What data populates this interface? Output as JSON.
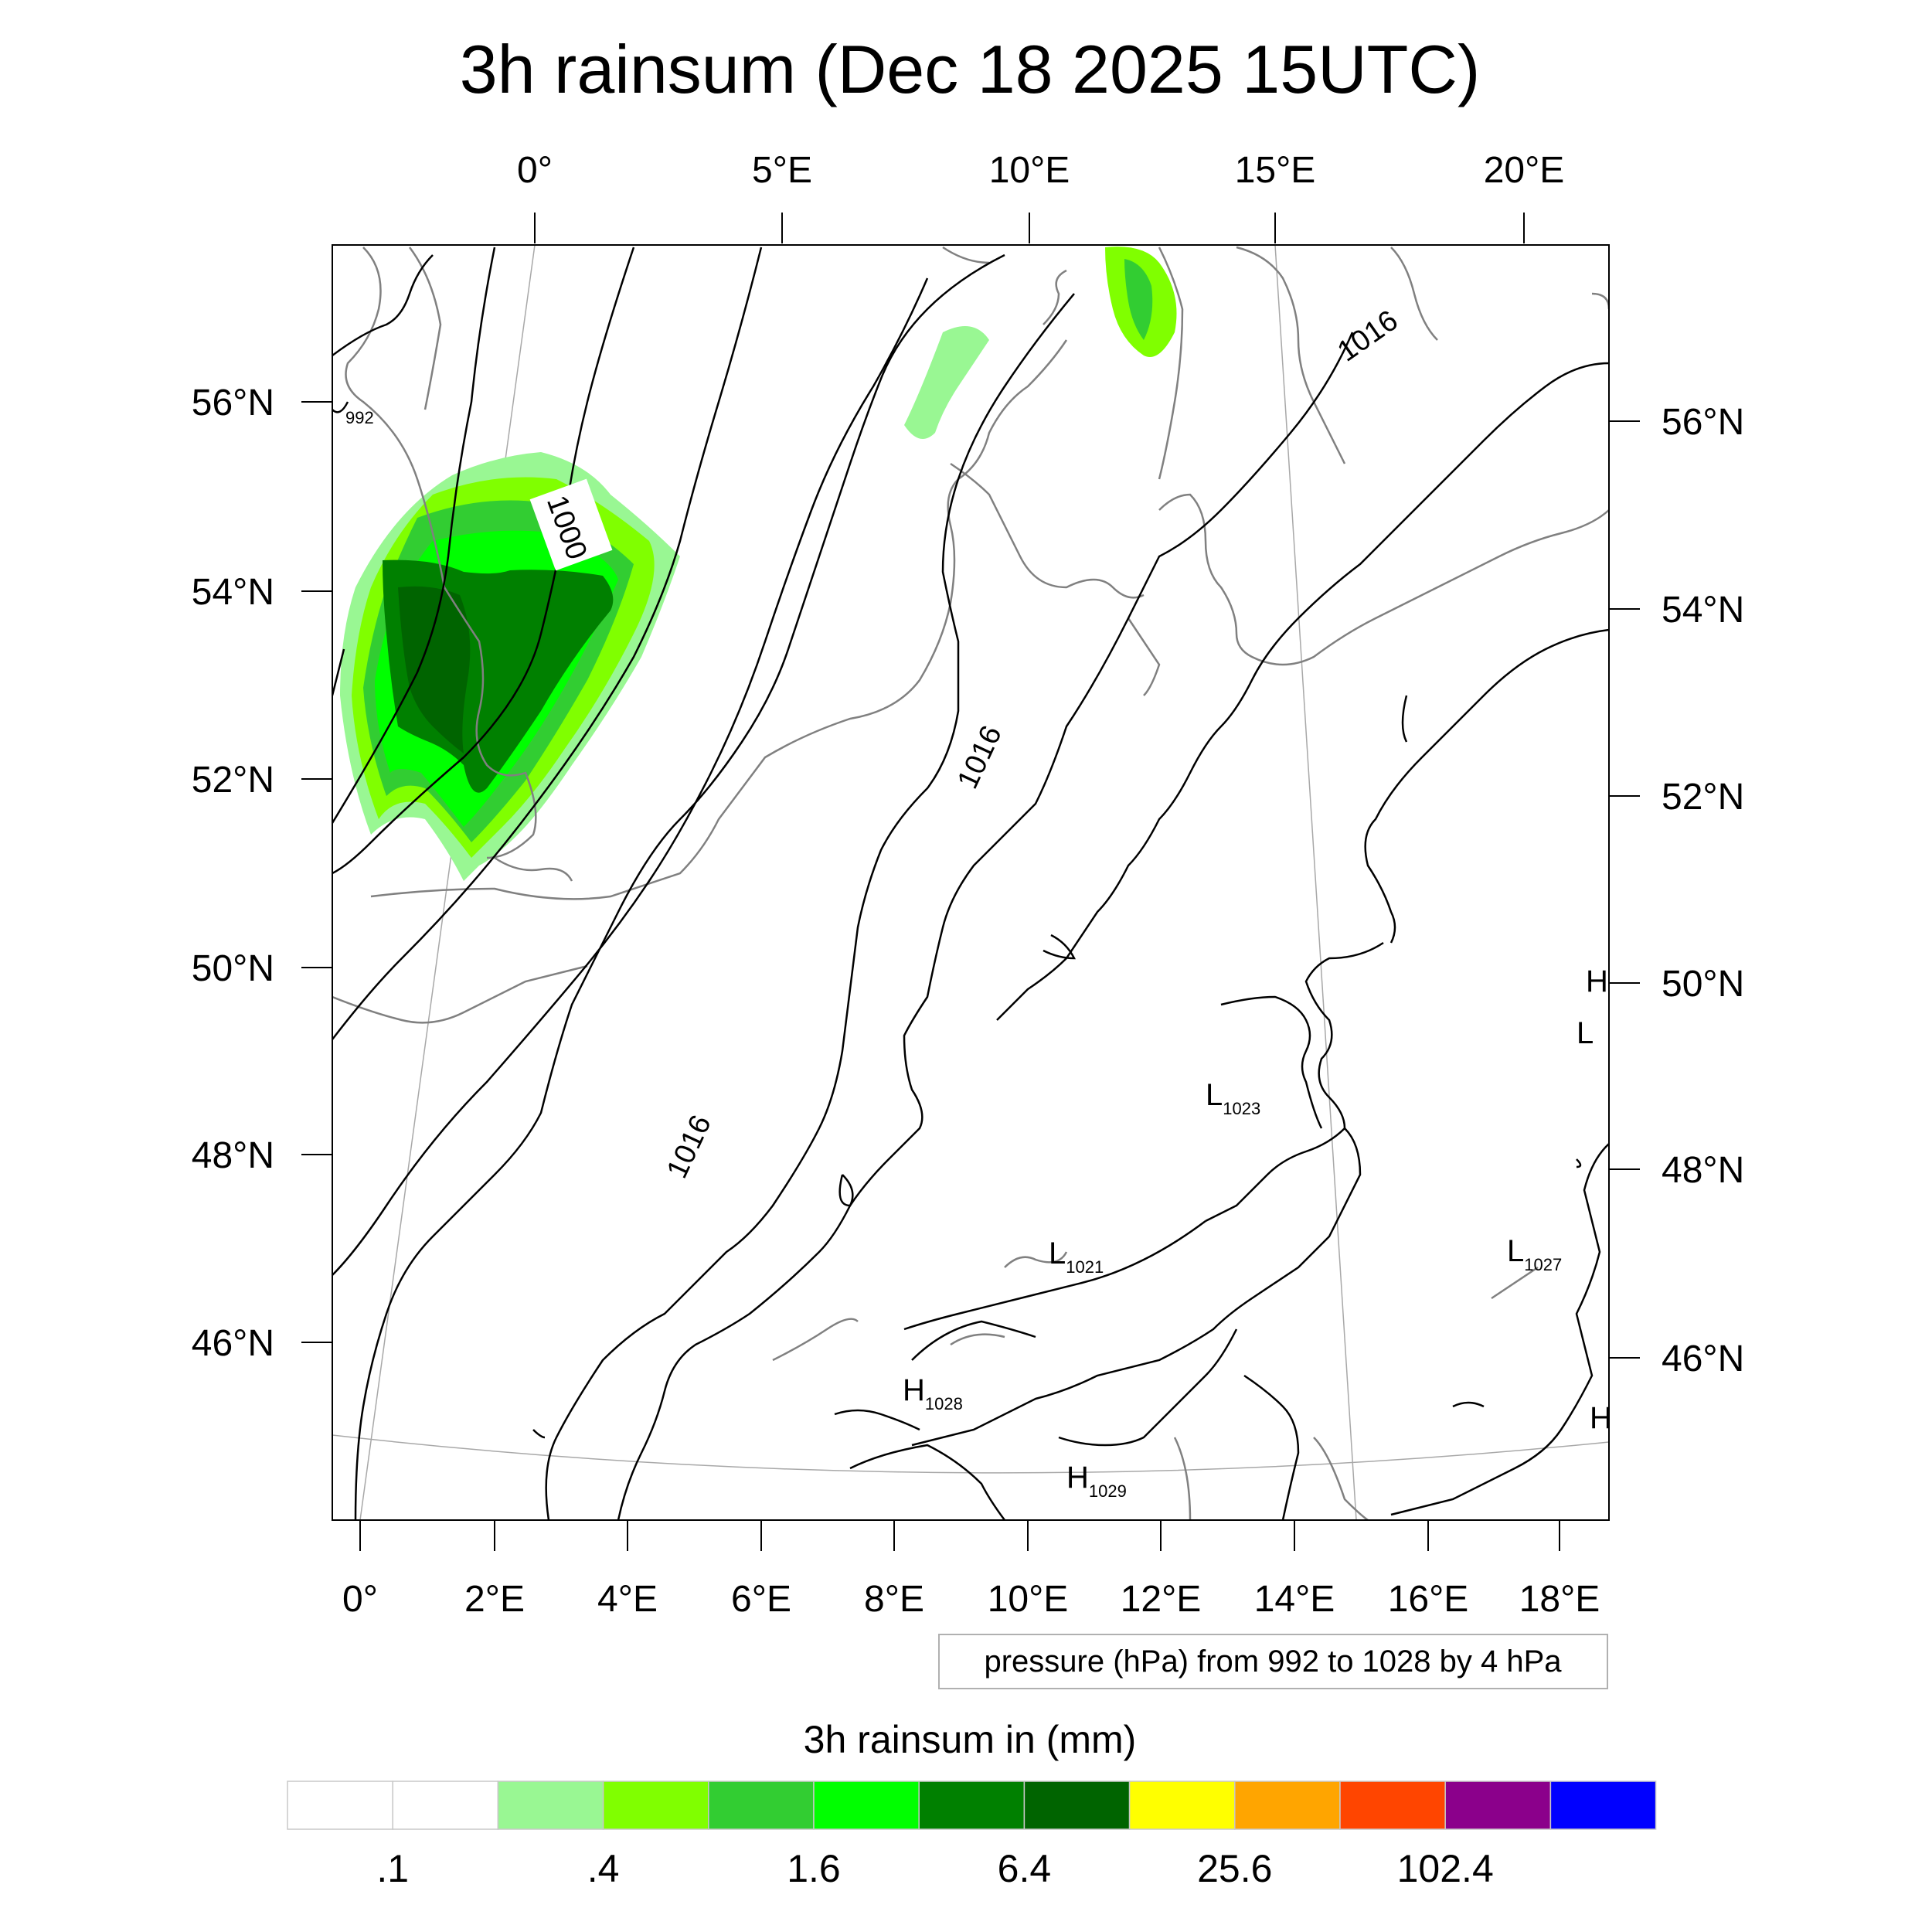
{
  "title": "3h rainsum (Dec 18 2025 15UTC)",
  "top_lon_labels": [
    "0°",
    "5°E",
    "10°E",
    "15°E",
    "20°E"
  ],
  "bottom_lon_labels": [
    "0°",
    "2°E",
    "4°E",
    "6°E",
    "8°E",
    "10°E",
    "12°E",
    "14°E",
    "16°E",
    "18°E"
  ],
  "left_lat_labels": [
    "56°N",
    "54°N",
    "52°N",
    "50°N",
    "48°N",
    "46°N"
  ],
  "right_lat_labels": [
    "56°N",
    "54°N",
    "52°N",
    "50°N",
    "48°N",
    "46°N"
  ],
  "contour_labels": {
    "c992": "992",
    "c1000": "1000",
    "c1016_ne": "1016",
    "c1016_mid": "1016",
    "c1016_sw": "1016"
  },
  "pressure_centers": [
    {
      "letter": "L",
      "value": "1023"
    },
    {
      "letter": "L",
      "value": "1021"
    },
    {
      "letter": "L",
      "value": "1027"
    },
    {
      "letter": "H",
      "value": "1028"
    },
    {
      "letter": "H",
      "value": "1029"
    },
    {
      "letter": "H",
      "value": ""
    },
    {
      "letter": "L",
      "value": ""
    },
    {
      "letter": "H",
      "value": ""
    }
  ],
  "pressure_note": "pressure (hPa) from 992 to 1028 by 4 hPa",
  "colorbar": {
    "title": "3h rainsum in (mm)",
    "colors": [
      "#ffffff",
      "#ffffff",
      "#99f793",
      "#80ff00",
      "#32cd32",
      "#00ff00",
      "#008000",
      "#006400",
      "#ffff00",
      "#ffa500",
      "#ff4500",
      "#8b008b",
      "#0000ff"
    ],
    "labels": [
      ".1",
      ".4",
      "1.6",
      "6.4",
      "25.6",
      "102.4"
    ]
  },
  "colors": {
    "contour": "#000000",
    "coastline": "#808080",
    "grid": "#a0a0a0"
  }
}
